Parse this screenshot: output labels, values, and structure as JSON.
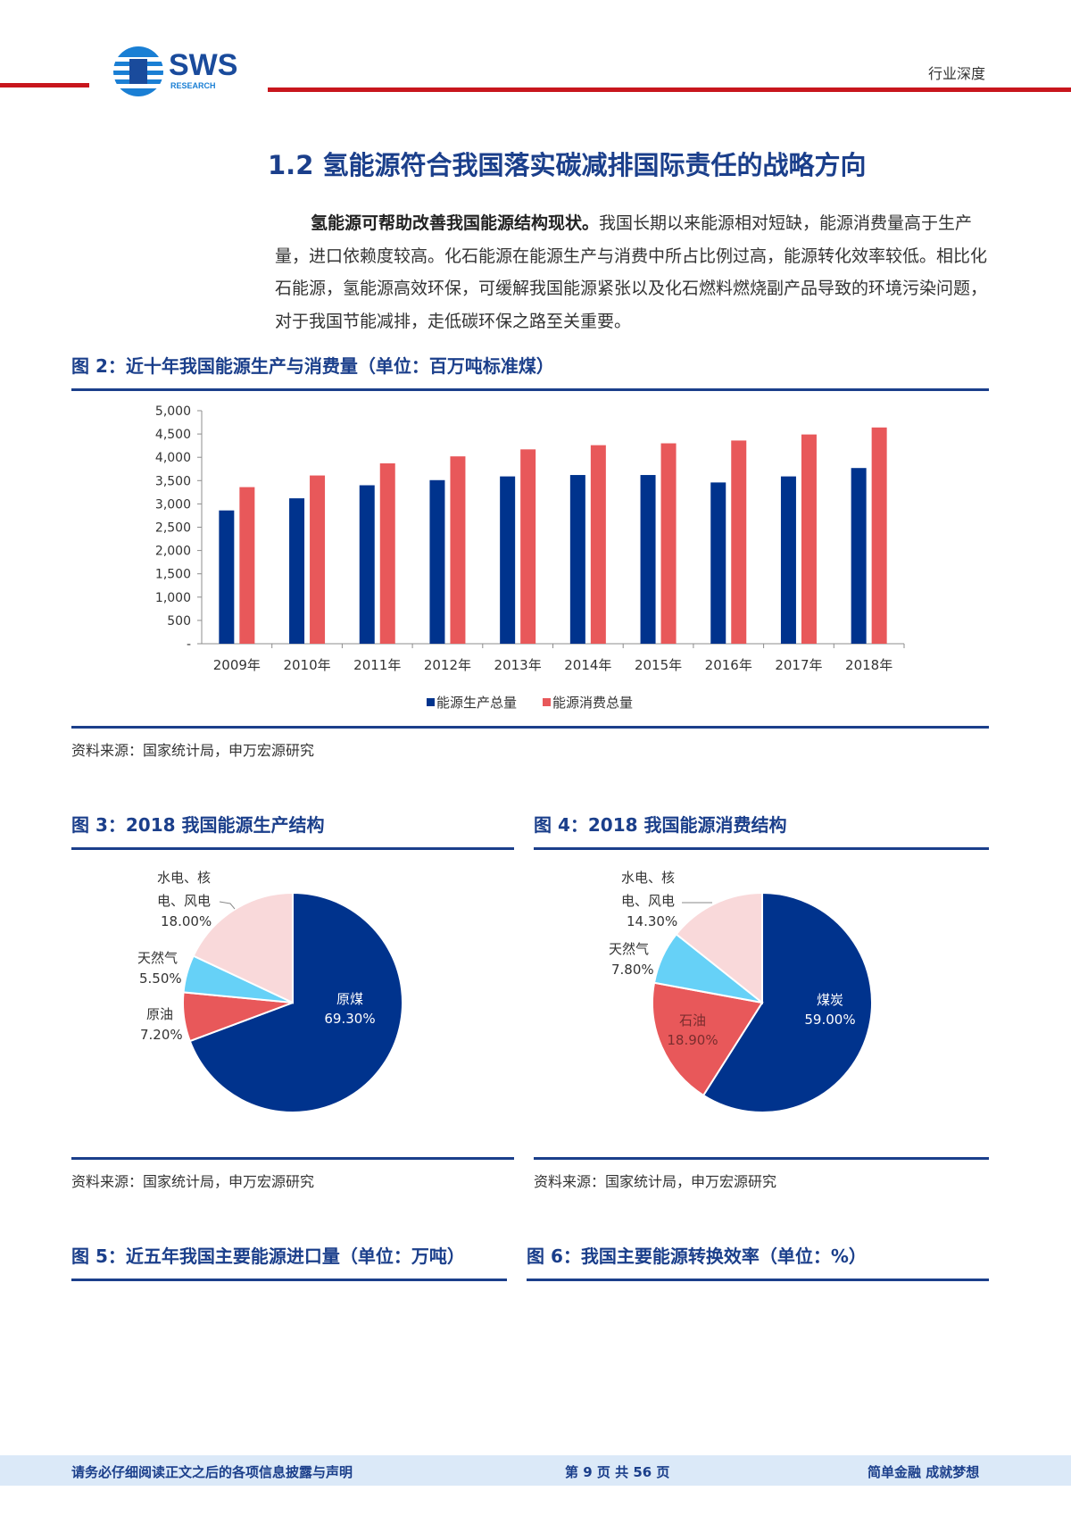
{
  "header": {
    "logo_text": "SWS",
    "logo_sub": "RESEARCH",
    "report_type": "行业深度"
  },
  "section": {
    "title": "1.2 氢能源符合我国落实碳减排国际责任的战略方向",
    "paragraph_bold": "氢能源可帮助改善我国能源结构现状。",
    "paragraph_rest": "我国长期以来能源相对短缺，能源消费量高于生产量，进口依赖度较高。化石能源在能源生产与消费中所占比例过高，能源转化效率较低。相比化石能源，氢能源高效环保，可缓解我国能源紧张以及化石燃料燃烧副产品导致的环境污染问题，对于我国节能减排，走低碳环保之路至关重要。"
  },
  "figures": {
    "fig2_title": "图 2：近十年我国能源生产与消费量（单位：百万吨标准煤）",
    "fig2_source": "资料来源：国家统计局，申万宏源研究",
    "fig3_title": "图 3：2018 我国能源生产结构",
    "fig3_source": "资料来源：国家统计局，申万宏源研究",
    "fig4_title": "图 4：2018 我国能源消费结构",
    "fig4_source": "资料来源：国家统计局，申万宏源研究",
    "fig5_title": "图 5：近五年我国主要能源进口量（单位：万吨）",
    "fig6_title": "图 6：我国主要能源转换效率（单位：%）"
  },
  "chart_data": [
    {
      "type": "bar",
      "title": "图 2：近十年我国能源生产与消费量（单位：百万吨标准煤）",
      "categories": [
        "2009年",
        "2010年",
        "2011年",
        "2012年",
        "2013年",
        "2014年",
        "2015年",
        "2016年",
        "2017年",
        "2018年"
      ],
      "series": [
        {
          "name": "能源生产总量",
          "color": "#00338d",
          "values": [
            2860,
            3120,
            3400,
            3510,
            3590,
            3620,
            3620,
            3460,
            3590,
            3770
          ]
        },
        {
          "name": "能源消费总量",
          "color": "#e8585a",
          "values": [
            3360,
            3610,
            3870,
            4020,
            4170,
            4260,
            4300,
            4360,
            4490,
            4640
          ]
        }
      ],
      "yticks": [
        "-",
        "500",
        "1,000",
        "1,500",
        "2,000",
        "2,500",
        "3,000",
        "3,500",
        "4,000",
        "4,500",
        "5,000"
      ],
      "ylim": [
        0,
        5000
      ],
      "legend": "bottom"
    },
    {
      "type": "pie",
      "title": "图 3：2018 我国能源生产结构",
      "slices": [
        {
          "label": "原煤",
          "value": 69.3,
          "display": "69.30%",
          "color": "#00338d"
        },
        {
          "label": "原油",
          "value": 7.2,
          "display": "7.20%",
          "color": "#e8585a"
        },
        {
          "label": "天然气",
          "value": 5.5,
          "display": "5.50%",
          "color": "#66d1f7"
        },
        {
          "label": "水电、核电、风电",
          "value": 18.0,
          "display": "18.00%",
          "color": "#f9d9da"
        }
      ]
    },
    {
      "type": "pie",
      "title": "图 4：2018 我国能源消费结构",
      "slices": [
        {
          "label": "煤炭",
          "value": 59.0,
          "display": "59.00%",
          "color": "#00338d"
        },
        {
          "label": "石油",
          "value": 18.9,
          "display": "18.90%",
          "color": "#e8585a"
        },
        {
          "label": "天然气",
          "value": 7.8,
          "display": "7.80%",
          "color": "#66d1f7"
        },
        {
          "label": "水电、核电、风电",
          "value": 14.3,
          "display": "14.30%",
          "color": "#f9d9da"
        }
      ]
    }
  ],
  "pie_label_lines": {
    "fig3_hydro_line1": "水电、核",
    "fig3_hydro_line2": "电、风电",
    "fig4_hydro_line1": "水电、核",
    "fig4_hydro_line2": "电、风电"
  },
  "footer": {
    "disclaimer": "请务必仔细阅读正文之后的各项信息披露与声明",
    "page": "第 9 页 共 56 页",
    "slogan": "简单金融 成就梦想"
  }
}
